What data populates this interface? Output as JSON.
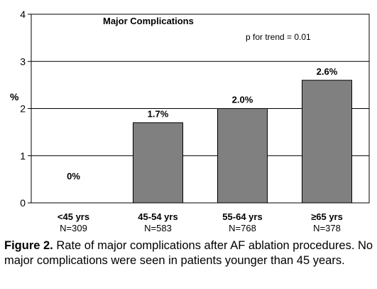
{
  "chart_data": {
    "type": "bar",
    "title": "Major Complications",
    "annotation": "p for trend = 0.01",
    "ylabel": "%",
    "ylim": [
      0,
      4
    ],
    "yticks": [
      "0",
      "1",
      "2",
      "3",
      "4"
    ],
    "grid": true,
    "legend": "none",
    "categories": [
      "<45 yrs",
      "45-54 yrs",
      "55-64 yrs",
      "≥65 yrs"
    ],
    "n_labels": [
      "N=309",
      "N=583",
      "N=768",
      "N=378"
    ],
    "values": [
      0,
      1.7,
      2.0,
      2.6
    ],
    "value_labels": [
      "0%",
      "1.7%",
      "2.0%",
      "2.6%"
    ],
    "bar_color": "#808080"
  },
  "caption": {
    "label": "Figure 2.",
    "text": "Rate of major complications after AF ablation procedures. No major complications were seen in patients younger than 45 years."
  }
}
